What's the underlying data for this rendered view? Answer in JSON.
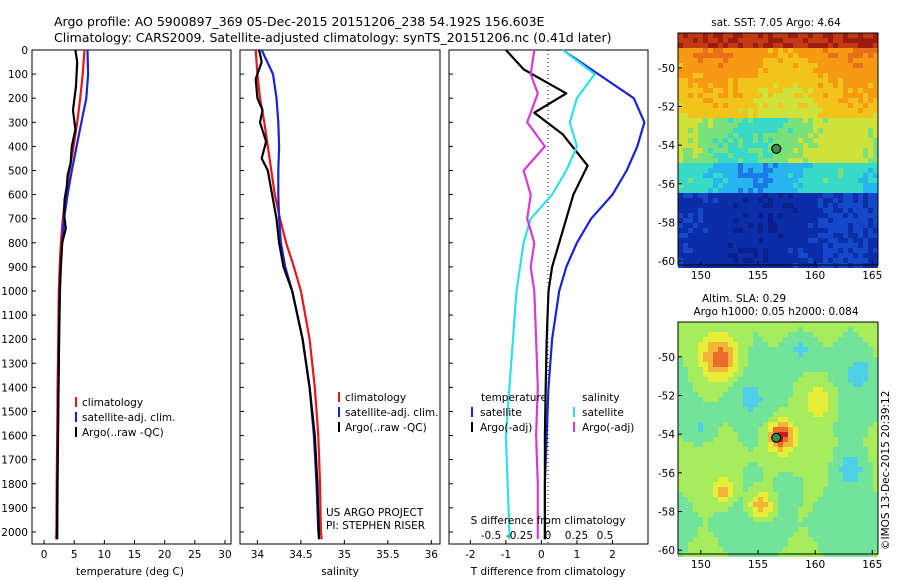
{
  "header": {
    "line1": "Argo profile: AO 5900897_369 05-Dec-2015 20151206_238 54.192S 156.603E",
    "line2": "Climatology: CARS2009. Satellite-adjusted climatology: synTS_20151206.nc (0.41d later)"
  },
  "colors": {
    "climatology": "#e8161b",
    "satellite": "#1a22d6",
    "argo": "#000000",
    "sat_salinity": "#2ee0e6",
    "argo_salinity": "#d63ad6"
  },
  "chart_data": [
    {
      "type": "line",
      "xlabel": "temperature (deg C)",
      "ylabel": "",
      "xlim": [
        -2,
        31
      ],
      "ylim": [
        2050,
        0
      ],
      "y_inverted": true,
      "xticks": [
        "0",
        "5",
        "10",
        "15",
        "20",
        "25",
        "30"
      ],
      "yticks": [
        "0",
        "100",
        "200",
        "300",
        "400",
        "500",
        "600",
        "700",
        "800",
        "900",
        "1000",
        "1100",
        "1200",
        "1300",
        "1400",
        "1500",
        "1600",
        "1700",
        "1800",
        "1900",
        "2000"
      ],
      "legend": [
        "climatology",
        "satellite-adj. clim.",
        "Argo(..raw -QC)"
      ],
      "legend_position": "lower-right",
      "series": [
        {
          "name": "climatology",
          "color": "#e8161b",
          "x": [
            6.7,
            6.4,
            6.0,
            5.5,
            4.9,
            4.2,
            3.6,
            3.1,
            2.8,
            2.6,
            2.45,
            2.35,
            2.25,
            2.18,
            2.1,
            2.05,
            2.0
          ],
          "y": [
            0,
            100,
            200,
            300,
            400,
            500,
            600,
            700,
            800,
            900,
            1000,
            1200,
            1400,
            1600,
            1800,
            2000,
            2030
          ]
        },
        {
          "name": "satellite-adj. clim.",
          "color": "#1a22d6",
          "x": [
            7.2,
            7.3,
            7.0,
            6.2,
            5.4,
            4.6,
            3.9,
            3.3,
            3.0,
            2.8,
            2.65,
            2.5,
            2.4,
            2.32,
            2.25,
            2.2,
            2.18
          ],
          "y": [
            0,
            100,
            200,
            300,
            400,
            500,
            600,
            700,
            800,
            900,
            1000,
            1200,
            1400,
            1600,
            1800,
            2000,
            2030
          ]
        },
        {
          "name": "Argo(..raw -QC)",
          "color": "#000000",
          "x": [
            5.2,
            5.5,
            5.3,
            4.8,
            5.2,
            4.6,
            4.4,
            3.9,
            3.8,
            3.4,
            3.3,
            3.6,
            3.0,
            2.8,
            2.6,
            2.5,
            2.4,
            2.3,
            2.2,
            2.15
          ],
          "y": [
            0,
            50,
            150,
            250,
            330,
            400,
            470,
            520,
            560,
            620,
            680,
            740,
            800,
            880,
            1000,
            1200,
            1400,
            1600,
            1800,
            2030
          ]
        }
      ]
    },
    {
      "type": "line",
      "xlabel": "salinity",
      "ylabel": "",
      "xlim": [
        33.8,
        36.1
      ],
      "ylim": [
        2050,
        0
      ],
      "y_inverted": true,
      "xticks": [
        "34",
        "34.5",
        "35",
        "35.5",
        "36"
      ],
      "legend": [
        "climatology",
        "satellite-adj. clim.",
        "Argo(..raw -QC)"
      ],
      "legend_position": "lower-right",
      "annotations": [
        "US ARGO PROJECT",
        "PI: STEPHEN RISER"
      ],
      "series": [
        {
          "name": "climatology",
          "color": "#e8161b",
          "x": [
            33.98,
            34.0,
            34.03,
            34.08,
            34.12,
            34.16,
            34.2,
            34.26,
            34.33,
            34.42,
            34.5,
            34.6,
            34.66,
            34.7,
            34.72,
            34.73,
            34.74
          ],
          "y": [
            0,
            100,
            200,
            300,
            400,
            500,
            600,
            700,
            800,
            900,
            1000,
            1200,
            1400,
            1600,
            1800,
            2000,
            2030
          ]
        },
        {
          "name": "satellite-adj. clim.",
          "color": "#1a22d6",
          "x": [
            34.05,
            34.18,
            34.22,
            34.24,
            34.25,
            34.24,
            34.24,
            34.25,
            34.27,
            34.32,
            34.4,
            34.52,
            34.6,
            34.65,
            34.68,
            34.7,
            34.71
          ],
          "y": [
            0,
            100,
            200,
            300,
            400,
            500,
            600,
            700,
            800,
            900,
            1000,
            1200,
            1400,
            1600,
            1800,
            2000,
            2030
          ]
        },
        {
          "name": "Argo(..raw -QC)",
          "color": "#000000",
          "x": [
            34.02,
            34.05,
            33.98,
            34.0,
            34.06,
            34.03,
            34.1,
            34.05,
            34.12,
            34.15,
            34.18,
            34.22,
            34.25,
            34.3,
            34.4,
            34.52,
            34.6,
            34.66,
            34.69,
            34.71
          ],
          "y": [
            0,
            50,
            120,
            200,
            250,
            300,
            380,
            450,
            500,
            560,
            620,
            700,
            800,
            900,
            1000,
            1200,
            1400,
            1600,
            1800,
            2030
          ]
        }
      ]
    },
    {
      "type": "line",
      "xlabel": "T difference from climatology",
      "xlabel2": "S difference from climatology",
      "xlim": [
        -2.6,
        3.0
      ],
      "ylim": [
        2050,
        0
      ],
      "y_inverted": true,
      "xticks": [
        "-2",
        "-1",
        "0",
        "1",
        "2"
      ],
      "xticks2": [
        "-0.5",
        "-0.25",
        "0",
        "0.25",
        "0.5"
      ],
      "legend_headers": [
        "temperature",
        "salinity"
      ],
      "legend": [
        "satellite",
        "Argo(-adj)",
        "satellite",
        "Argo(-adj)"
      ],
      "series": [
        {
          "name": "satellite",
          "group": "temperature",
          "color": "#1a22d6",
          "x": [
            0.6,
            1.6,
            2.6,
            2.9,
            2.7,
            2.4,
            2.0,
            1.4,
            1.0,
            0.7,
            0.5,
            0.3,
            0.2,
            0.15,
            0.1,
            0.1,
            0.1
          ],
          "y": [
            0,
            100,
            200,
            300,
            400,
            500,
            600,
            700,
            800,
            900,
            1000,
            1200,
            1400,
            1600,
            1800,
            2000,
            2030
          ]
        },
        {
          "name": "Argo(-adj)",
          "group": "temperature",
          "color": "#000000",
          "x": [
            -1.0,
            -0.5,
            0.7,
            -0.2,
            0.6,
            1.3,
            0.9,
            0.7,
            0.5,
            0.3,
            0.2,
            0.15,
            0.12,
            0.1,
            0.1,
            0.1,
            0.1
          ],
          "y": [
            0,
            80,
            180,
            260,
            350,
            480,
            600,
            700,
            800,
            900,
            1000,
            1200,
            1400,
            1600,
            1800,
            2000,
            2030
          ]
        },
        {
          "name": "satellite",
          "group": "salinity",
          "color": "#2ee0e6",
          "x": [
            0.6,
            1.5,
            1.0,
            0.8,
            1.0,
            0.7,
            0.3,
            -0.3,
            -0.5,
            -0.6,
            -0.7,
            -0.8,
            -0.9,
            -1.0,
            -0.95,
            -0.9,
            -0.9
          ],
          "y": [
            0,
            100,
            200,
            300,
            400,
            500,
            600,
            700,
            800,
            900,
            1000,
            1200,
            1400,
            1600,
            1800,
            2000,
            2030
          ]
        },
        {
          "name": "Argo(-adj)",
          "group": "salinity",
          "color": "#d63ad6",
          "x": [
            -0.2,
            -0.3,
            -0.1,
            -0.4,
            0.1,
            -0.5,
            -0.3,
            -0.4,
            -0.2,
            -0.3,
            -0.2,
            -0.15,
            -0.1,
            -0.15,
            -0.1,
            -0.1,
            -0.1
          ],
          "y": [
            0,
            100,
            180,
            300,
            400,
            500,
            600,
            700,
            800,
            900,
            1000,
            1200,
            1400,
            1600,
            1800,
            2000,
            2030
          ]
        }
      ]
    },
    {
      "type": "heatmap",
      "title": "sat. SST: 7.05 Argo: 4.64",
      "xlim": [
        148,
        165.5
      ],
      "ylim": [
        -60.2,
        -48.2
      ],
      "xticks": [
        "150",
        "155",
        "160",
        "165"
      ],
      "yticks": [
        "-50",
        "-52",
        "-54",
        "-56",
        "-58",
        "-60"
      ],
      "marker": {
        "lon": 156.6,
        "lat": -54.19
      }
    },
    {
      "type": "heatmap",
      "title": "Altim. SLA: 0.29",
      "subtitle": "Argo h1000: 0.05 h2000: 0.084",
      "xlim": [
        148,
        165.5
      ],
      "ylim": [
        -60.2,
        -48.2
      ],
      "xticks": [
        "150",
        "155",
        "160",
        "165"
      ],
      "yticks": [
        "-50",
        "-52",
        "-54",
        "-56",
        "-58",
        "-60"
      ],
      "marker": {
        "lon": 156.6,
        "lat": -54.19
      }
    }
  ],
  "side_note": "©IMOS 13-Dec-2015 20:39:12"
}
